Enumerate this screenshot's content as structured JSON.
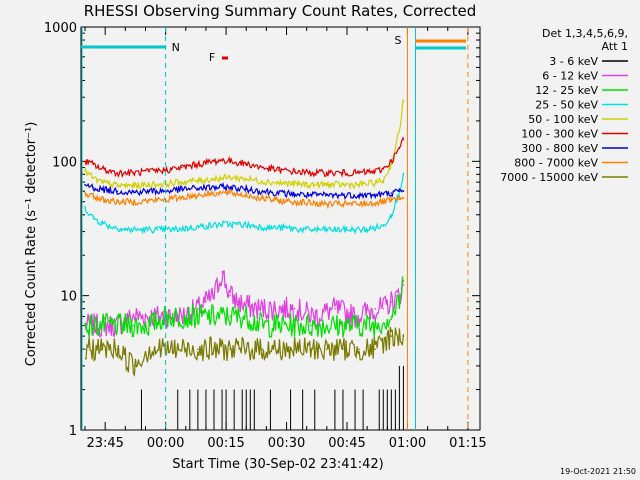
{
  "chart_data": {
    "type": "line",
    "title": "RHESSI Observing Summary Count Rates, Corrected",
    "xlabel": "Start Time (30-Sep-02 23:41:42)",
    "ylabel": "Corrected Count Rate (s⁻¹ detector⁻¹)",
    "yscale": "log",
    "ylim": [
      1,
      1000
    ],
    "xlim_minutes": [
      -3,
      96
    ],
    "x_ticks": [
      {
        "m": 3,
        "label": "23:45"
      },
      {
        "m": 18,
        "label": "00:00"
      },
      {
        "m": 33,
        "label": "00:15"
      },
      {
        "m": 48,
        "label": "00:30"
      },
      {
        "m": 63,
        "label": "00:45"
      },
      {
        "m": 78,
        "label": "01:00"
      },
      {
        "m": 93,
        "label": "01:15"
      }
    ],
    "y_ticks": [
      {
        "v": 1,
        "label": "1"
      },
      {
        "v": 10,
        "label": "10"
      },
      {
        "v": 100,
        "label": "100"
      },
      {
        "v": 1000,
        "label": "1000"
      }
    ],
    "legend_title": [
      "Det 1,3,4,5,6,9,",
      "Att 1"
    ],
    "series": [
      {
        "name": "3 - 6 keV",
        "color": "#000000",
        "kind": "spiky",
        "points": [
          [
            12,
            1
          ],
          [
            13,
            1
          ],
          [
            14,
            1
          ],
          [
            15,
            1
          ],
          [
            16,
            1
          ],
          [
            21,
            1
          ],
          [
            22,
            1
          ],
          [
            23,
            1
          ],
          [
            24,
            1
          ],
          [
            25,
            1
          ],
          [
            26,
            1
          ],
          [
            27,
            1
          ],
          [
            28,
            1
          ],
          [
            29,
            1
          ],
          [
            30,
            1
          ],
          [
            31,
            1
          ],
          [
            32,
            1
          ],
          [
            33,
            1
          ],
          [
            34,
            1
          ],
          [
            35,
            1
          ],
          [
            36,
            1
          ],
          [
            37,
            1
          ],
          [
            38,
            1
          ],
          [
            39,
            1
          ],
          [
            40,
            1
          ],
          [
            41,
            1
          ],
          [
            42,
            1
          ],
          [
            43,
            1
          ],
          [
            44,
            1
          ],
          [
            45,
            1
          ],
          [
            46,
            1
          ],
          [
            47,
            1
          ],
          [
            48,
            1
          ],
          [
            49,
            1
          ],
          [
            50,
            1
          ],
          [
            51,
            1
          ],
          [
            52,
            1
          ],
          [
            53,
            1
          ],
          [
            54,
            1
          ],
          [
            55,
            1
          ],
          [
            56,
            1
          ],
          [
            57,
            1
          ],
          [
            58,
            1
          ],
          [
            59,
            1
          ],
          [
            60,
            1
          ],
          [
            61,
            1
          ],
          [
            62,
            1
          ],
          [
            63,
            1
          ],
          [
            64,
            1
          ],
          [
            65,
            1
          ],
          [
            66,
            1
          ],
          [
            67,
            1
          ],
          [
            68,
            1
          ],
          [
            69,
            1
          ],
          [
            70,
            1
          ],
          [
            71,
            1
          ],
          [
            72,
            1
          ],
          [
            73,
            1
          ],
          [
            74,
            1
          ],
          [
            75,
            1
          ],
          [
            76,
            1
          ],
          [
            77,
            1
          ],
          [
            78,
            1
          ]
        ],
        "peaks": [
          [
            12,
            2
          ],
          [
            16,
            1
          ],
          [
            21,
            2
          ],
          [
            24,
            2
          ],
          [
            26,
            2
          ],
          [
            28,
            2
          ],
          [
            30,
            2
          ],
          [
            32,
            2
          ],
          [
            33,
            2
          ],
          [
            35,
            2
          ],
          [
            37,
            2
          ],
          [
            38,
            2
          ],
          [
            39,
            2
          ],
          [
            40,
            2
          ],
          [
            44,
            2
          ],
          [
            49,
            2
          ],
          [
            52,
            2
          ],
          [
            55,
            2
          ],
          [
            60,
            2
          ],
          [
            62,
            2
          ],
          [
            65,
            2
          ],
          [
            67,
            2
          ],
          [
            71,
            2
          ],
          [
            72,
            2
          ],
          [
            73,
            2
          ],
          [
            74,
            2
          ],
          [
            75,
            2
          ],
          [
            76,
            3
          ],
          [
            77,
            3
          ]
        ]
      },
      {
        "name": "6 - 12 keV",
        "color": "#e040e0",
        "kind": "line",
        "points": [
          [
            -2,
            6
          ],
          [
            2,
            6
          ],
          [
            6,
            6
          ],
          [
            10,
            7
          ],
          [
            14,
            7
          ],
          [
            18,
            7
          ],
          [
            22,
            7
          ],
          [
            26,
            8
          ],
          [
            28,
            9
          ],
          [
            30,
            10
          ],
          [
            31,
            12
          ],
          [
            32,
            15
          ],
          [
            33,
            12
          ],
          [
            34,
            10
          ],
          [
            36,
            9
          ],
          [
            40,
            8
          ],
          [
            45,
            8
          ],
          [
            50,
            8
          ],
          [
            55,
            7
          ],
          [
            60,
            8
          ],
          [
            65,
            7
          ],
          [
            70,
            8
          ],
          [
            72,
            8
          ],
          [
            74,
            9
          ],
          [
            76,
            10
          ],
          [
            77,
            12
          ]
        ]
      },
      {
        "name": "12 - 25 keV",
        "color": "#00e000",
        "kind": "line",
        "points": [
          [
            -2,
            6
          ],
          [
            2,
            6
          ],
          [
            6,
            6
          ],
          [
            10,
            6
          ],
          [
            14,
            6
          ],
          [
            18,
            7
          ],
          [
            22,
            7
          ],
          [
            26,
            7
          ],
          [
            30,
            7
          ],
          [
            34,
            7
          ],
          [
            38,
            7
          ],
          [
            42,
            6
          ],
          [
            46,
            6
          ],
          [
            50,
            6
          ],
          [
            54,
            6
          ],
          [
            58,
            6
          ],
          [
            62,
            6
          ],
          [
            66,
            6
          ],
          [
            70,
            6
          ],
          [
            74,
            7
          ],
          [
            76,
            9
          ],
          [
            77,
            13
          ]
        ]
      },
      {
        "name": "25 - 50 keV",
        "color": "#00e0e0",
        "kind": "line",
        "points": [
          [
            -2,
            45
          ],
          [
            0,
            38
          ],
          [
            2,
            35
          ],
          [
            4,
            33
          ],
          [
            8,
            31
          ],
          [
            12,
            31
          ],
          [
            16,
            31
          ],
          [
            20,
            31
          ],
          [
            24,
            32
          ],
          [
            28,
            33
          ],
          [
            32,
            34
          ],
          [
            36,
            34
          ],
          [
            40,
            33
          ],
          [
            44,
            32
          ],
          [
            48,
            32
          ],
          [
            52,
            31
          ],
          [
            56,
            31
          ],
          [
            60,
            31
          ],
          [
            64,
            31
          ],
          [
            68,
            31
          ],
          [
            70,
            32
          ],
          [
            72,
            33
          ],
          [
            74,
            40
          ],
          [
            76,
            60
          ],
          [
            77,
            80
          ]
        ]
      },
      {
        "name": "50 - 100 keV",
        "color": "#d0d000",
        "kind": "line",
        "points": [
          [
            -2,
            85
          ],
          [
            0,
            75
          ],
          [
            2,
            70
          ],
          [
            6,
            66
          ],
          [
            10,
            66
          ],
          [
            14,
            67
          ],
          [
            18,
            68
          ],
          [
            22,
            70
          ],
          [
            26,
            72
          ],
          [
            30,
            74
          ],
          [
            34,
            76
          ],
          [
            38,
            74
          ],
          [
            42,
            71
          ],
          [
            46,
            69
          ],
          [
            50,
            68
          ],
          [
            54,
            67
          ],
          [
            58,
            67
          ],
          [
            62,
            67
          ],
          [
            66,
            67
          ],
          [
            70,
            69
          ],
          [
            72,
            72
          ],
          [
            74,
            95
          ],
          [
            76,
            170
          ],
          [
            77,
            280
          ]
        ]
      },
      {
        "name": "100 - 300 keV",
        "color": "#e00000",
        "kind": "line",
        "points": [
          [
            -2,
            100
          ],
          [
            0,
            95
          ],
          [
            2,
            88
          ],
          [
            6,
            82
          ],
          [
            10,
            82
          ],
          [
            14,
            84
          ],
          [
            18,
            86
          ],
          [
            22,
            90
          ],
          [
            26,
            95
          ],
          [
            30,
            100
          ],
          [
            32,
            102
          ],
          [
            34,
            100
          ],
          [
            38,
            96
          ],
          [
            42,
            90
          ],
          [
            46,
            86
          ],
          [
            50,
            84
          ],
          [
            54,
            82
          ],
          [
            58,
            82
          ],
          [
            62,
            82
          ],
          [
            66,
            82
          ],
          [
            70,
            84
          ],
          [
            72,
            88
          ],
          [
            74,
            100
          ],
          [
            76,
            125
          ],
          [
            77,
            145
          ]
        ]
      },
      {
        "name": "300 - 800 keV",
        "color": "#0000e0",
        "kind": "line",
        "points": [
          [
            -2,
            67
          ],
          [
            0,
            64
          ],
          [
            2,
            62
          ],
          [
            6,
            60
          ],
          [
            10,
            59
          ],
          [
            14,
            60
          ],
          [
            18,
            60
          ],
          [
            22,
            62
          ],
          [
            26,
            63
          ],
          [
            30,
            64
          ],
          [
            34,
            64
          ],
          [
            38,
            62
          ],
          [
            42,
            60
          ],
          [
            46,
            58
          ],
          [
            50,
            57
          ],
          [
            54,
            56
          ],
          [
            58,
            56
          ],
          [
            62,
            56
          ],
          [
            66,
            56
          ],
          [
            70,
            56
          ],
          [
            72,
            57
          ],
          [
            74,
            58
          ],
          [
            76,
            60
          ],
          [
            77,
            60
          ]
        ]
      },
      {
        "name": "800 - 7000 keV",
        "color": "#ff8000",
        "kind": "line",
        "points": [
          [
            -2,
            58
          ],
          [
            0,
            55
          ],
          [
            2,
            52
          ],
          [
            6,
            50
          ],
          [
            10,
            50
          ],
          [
            14,
            51
          ],
          [
            18,
            52
          ],
          [
            22,
            54
          ],
          [
            26,
            56
          ],
          [
            30,
            58
          ],
          [
            34,
            58
          ],
          [
            38,
            56
          ],
          [
            42,
            53
          ],
          [
            46,
            51
          ],
          [
            50,
            50
          ],
          [
            54,
            49
          ],
          [
            58,
            48
          ],
          [
            62,
            48
          ],
          [
            66,
            48
          ],
          [
            70,
            49
          ],
          [
            72,
            50
          ],
          [
            74,
            51
          ],
          [
            76,
            52
          ],
          [
            77,
            53
          ]
        ]
      },
      {
        "name": "7000 - 15000 keV",
        "color": "#7a7a00",
        "kind": "line",
        "points": [
          [
            -2,
            4
          ],
          [
            2,
            4
          ],
          [
            6,
            4
          ],
          [
            10,
            3
          ],
          [
            14,
            4
          ],
          [
            18,
            4
          ],
          [
            22,
            4
          ],
          [
            26,
            4
          ],
          [
            30,
            4
          ],
          [
            34,
            4
          ],
          [
            38,
            4
          ],
          [
            42,
            4
          ],
          [
            46,
            4
          ],
          [
            50,
            4
          ],
          [
            54,
            4
          ],
          [
            58,
            4
          ],
          [
            62,
            4
          ],
          [
            66,
            4
          ],
          [
            70,
            4
          ],
          [
            74,
            5
          ],
          [
            76,
            5
          ],
          [
            77,
            5
          ]
        ]
      }
    ],
    "annotations": [
      {
        "text": "N",
        "color": "#00c8c8"
      },
      {
        "text": "S",
        "color": "#ff8000"
      },
      {
        "text": "F",
        "color": "#e00000"
      }
    ]
  },
  "footer_date": "19-Oct-2021 21:50"
}
